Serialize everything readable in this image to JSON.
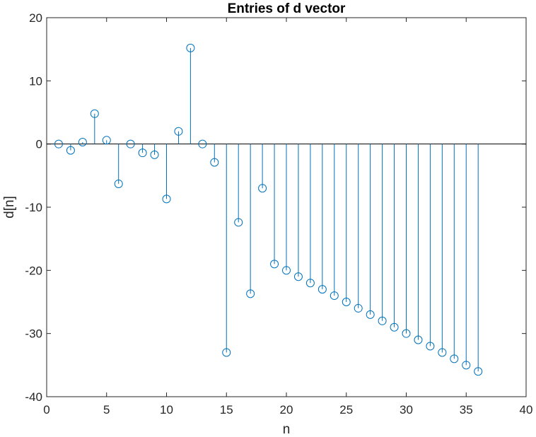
{
  "chart_data": {
    "type": "stem",
    "title": "Entries of d vector",
    "xlabel": "n",
    "ylabel": "d[n]",
    "xlim": [
      0,
      40
    ],
    "ylim": [
      -40,
      20
    ],
    "xticks": [
      0,
      5,
      10,
      15,
      20,
      25,
      30,
      35,
      40
    ],
    "yticks": [
      20,
      10,
      0,
      -10,
      -20,
      -30,
      -40
    ],
    "grid": false,
    "color": "#0072BD",
    "x": [
      1,
      2,
      3,
      4,
      5,
      6,
      7,
      8,
      9,
      10,
      11,
      12,
      13,
      14,
      15,
      16,
      17,
      18,
      19,
      20,
      21,
      22,
      23,
      24,
      25,
      26,
      27,
      28,
      29,
      30,
      31,
      32,
      33,
      34,
      35,
      36
    ],
    "values": [
      0,
      -1,
      0.3,
      4.8,
      0.6,
      -6.3,
      0,
      -1.4,
      -1.7,
      -8.7,
      2,
      15.2,
      0,
      -2.9,
      -33,
      -12.4,
      -23.7,
      -7,
      -19,
      -20,
      -21,
      -22,
      -23,
      -24,
      -25,
      -26,
      -27,
      -28,
      -29,
      -30,
      -31,
      -32,
      -33,
      -34,
      -35,
      -36
    ]
  }
}
